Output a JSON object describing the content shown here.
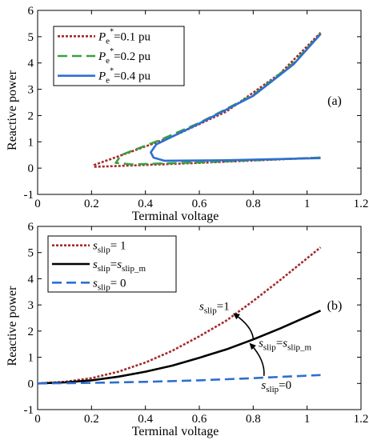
{
  "chart_data": [
    {
      "panel_label": "(a)",
      "type": "line",
      "xlabel": "Terminal voltage",
      "ylabel": "Reactive power",
      "xlim": [
        0,
        1.2
      ],
      "ylim": [
        -1,
        6
      ],
      "xticks": [
        "0",
        "0.2",
        "0.4",
        "0.6",
        "0.8",
        "1",
        "1.2"
      ],
      "yticks": [
        "-1",
        "0",
        "1",
        "2",
        "3",
        "4",
        "5",
        "6"
      ],
      "legend_position": "top-left",
      "series": [
        {
          "legend": {
            "base": "P",
            "sub": "e",
            "sup": "*",
            "rest": "=0.1 pu"
          },
          "color": "#a52a2a",
          "dash": "dotted",
          "points": [
            [
              1.05,
              0.4
            ],
            [
              0.6,
              0.2
            ],
            [
              0.3,
              0.08
            ],
            [
              0.21,
              0.05
            ],
            [
              0.21,
              0.12
            ],
            [
              0.3,
              0.45
            ],
            [
              0.5,
              1.2
            ],
            [
              0.7,
              2.15
            ],
            [
              0.9,
              3.6
            ],
            [
              1.05,
              5.15
            ]
          ]
        },
        {
          "legend": {
            "base": "P",
            "sub": "e",
            "sup": "*",
            "rest": "=0.2 pu"
          },
          "color": "#3aa040",
          "dash": "dashed",
          "points": [
            [
              1.05,
              0.4
            ],
            [
              0.6,
              0.22
            ],
            [
              0.35,
              0.14
            ],
            [
              0.29,
              0.2
            ],
            [
              0.31,
              0.5
            ],
            [
              0.45,
              1.05
            ],
            [
              0.6,
              1.72
            ],
            [
              0.8,
              2.78
            ],
            [
              0.95,
              4.0
            ],
            [
              1.05,
              5.12
            ]
          ]
        },
        {
          "legend": {
            "base": "P",
            "sub": "e",
            "sup": "*",
            "rest": "=0.4 pu"
          },
          "color": "#2f6fd0",
          "dash": "solid",
          "points": [
            [
              1.05,
              0.38
            ],
            [
              0.7,
              0.3
            ],
            [
              0.47,
              0.28
            ],
            [
              0.43,
              0.4
            ],
            [
              0.42,
              0.6
            ],
            [
              0.44,
              0.9
            ],
            [
              0.5,
              1.2
            ],
            [
              0.6,
              1.7
            ],
            [
              0.8,
              2.75
            ],
            [
              0.95,
              3.95
            ],
            [
              1.05,
              5.1
            ]
          ]
        }
      ]
    },
    {
      "panel_label": "(b)",
      "type": "line",
      "xlabel": "Terminal voltage",
      "ylabel": "Reactive power",
      "xlim": [
        0,
        1.2
      ],
      "ylim": [
        -1,
        6
      ],
      "xticks": [
        "0",
        "0.2",
        "0.4",
        "0.6",
        "0.8",
        "1",
        "1.2"
      ],
      "yticks": [
        "-1",
        "0",
        "1",
        "2",
        "3",
        "4",
        "5",
        "6"
      ],
      "legend_position": "top-left",
      "series": [
        {
          "legend": {
            "base": "s",
            "sub": "slip",
            "rest": "= 1"
          },
          "color": "#a52a2a",
          "dash": "dotted",
          "points": [
            [
              0,
              0
            ],
            [
              0.1,
              0.06
            ],
            [
              0.2,
              0.2
            ],
            [
              0.3,
              0.45
            ],
            [
              0.4,
              0.8
            ],
            [
              0.5,
              1.25
            ],
            [
              0.6,
              1.8
            ],
            [
              0.7,
              2.4
            ],
            [
              0.8,
              3.15
            ],
            [
              0.9,
              3.95
            ],
            [
              1.05,
              5.2
            ]
          ]
        },
        {
          "legend": {
            "base": "s",
            "sub": "slip",
            "rest": "=",
            "base2": "s",
            "sub2": "slip_m"
          },
          "color": "#000000",
          "dash": "solid",
          "points": [
            [
              0,
              0
            ],
            [
              0.1,
              0.04
            ],
            [
              0.2,
              0.12
            ],
            [
              0.3,
              0.26
            ],
            [
              0.4,
              0.45
            ],
            [
              0.5,
              0.68
            ],
            [
              0.6,
              0.98
            ],
            [
              0.7,
              1.3
            ],
            [
              0.8,
              1.68
            ],
            [
              0.9,
              2.1
            ],
            [
              1.05,
              2.78
            ]
          ]
        },
        {
          "legend": {
            "base": "s",
            "sub": "slip",
            "rest": "= 0"
          },
          "color": "#2f6fd0",
          "dash": "dashed",
          "points": [
            [
              0,
              0
            ],
            [
              0.2,
              0.02
            ],
            [
              0.4,
              0.06
            ],
            [
              0.6,
              0.12
            ],
            [
              0.8,
              0.2
            ],
            [
              0.9,
              0.25
            ],
            [
              1.05,
              0.32
            ]
          ]
        }
      ],
      "annotations": [
        {
          "base": "s",
          "sub": "slip",
          "rest": "=1",
          "x": 0.6,
          "y": 2.8
        },
        {
          "base": "s",
          "sub": "slip",
          "rest": "=",
          "base2": "s",
          "sub2": "slip_m",
          "x": 0.82,
          "y": 1.4
        },
        {
          "base": "s",
          "sub": "slip",
          "rest": "=0",
          "x": 0.83,
          "y": -0.2
        }
      ]
    }
  ]
}
